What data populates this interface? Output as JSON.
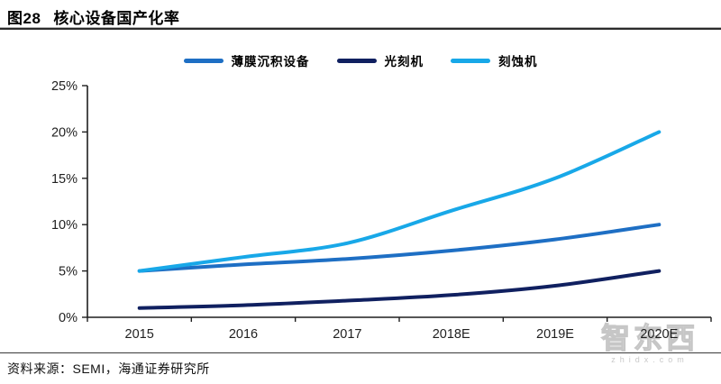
{
  "header": {
    "figure_label": "图28",
    "title": "核心设备国产化率"
  },
  "chart_data": {
    "type": "line",
    "title": "核心设备国产化率",
    "categories": [
      "2015",
      "2016",
      "2017",
      "2018E",
      "2019E",
      "2020E"
    ],
    "series": [
      {
        "name": "薄膜沉积设备",
        "color": "#1E6FC4",
        "values": [
          5,
          5.7,
          6.3,
          7.2,
          8.4,
          10
        ]
      },
      {
        "name": "光刻机",
        "color": "#102060",
        "values": [
          1,
          1.3,
          1.8,
          2.4,
          3.4,
          5
        ]
      },
      {
        "name": "刻蚀机",
        "color": "#18A8E8",
        "values": [
          5,
          6.5,
          8,
          11.5,
          15,
          20
        ]
      }
    ],
    "ylabel": "",
    "xlabel": "",
    "ylim": [
      0,
      25
    ],
    "ytick_step": 5,
    "ytick_labels": [
      "0%",
      "5%",
      "10%",
      "15%",
      "20%",
      "25%"
    ],
    "unit": "percent",
    "grid": false,
    "legend_position": "top-center",
    "axis_color": "#1f1f1f",
    "label_color": "#1f1f1f"
  },
  "footer": {
    "source_text": "资料来源：SEMI，海通证券研究所"
  },
  "watermark": {
    "brand": "智东西",
    "domain": "zhidx.com"
  }
}
